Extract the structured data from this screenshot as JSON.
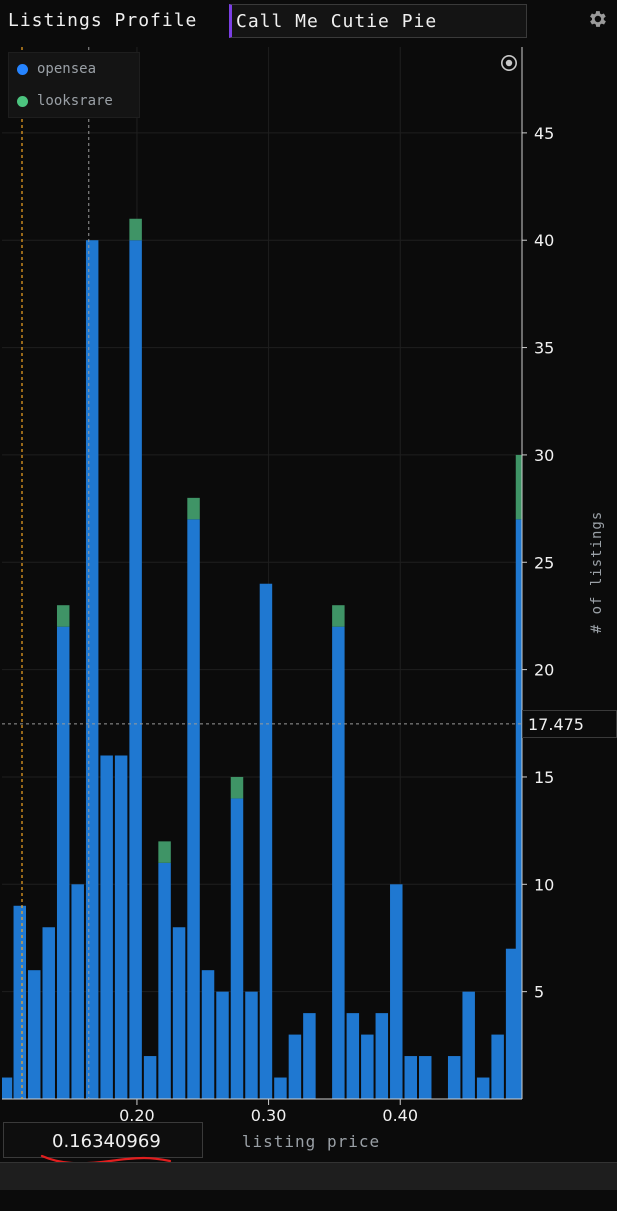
{
  "header": {
    "title": "Listings Profile",
    "collection_input": "Call Me Cutie Pie"
  },
  "legend": {
    "items": [
      {
        "label": "opensea",
        "color": "#2684ff"
      },
      {
        "label": "looksrare",
        "color": "#4cc47f"
      }
    ]
  },
  "crosshair": {
    "x_value": "0.16340969",
    "y_value": "17.475"
  },
  "colors": {
    "opensea": "#1f78d1",
    "looksrare": "#3f9466",
    "crosshair_line": "#f5a623",
    "background": "#0b0b0b"
  },
  "chart_data": {
    "type": "bar",
    "stacked": true,
    "xlabel": "listing price",
    "ylabel": "# of listings",
    "x_ticks": [
      {
        "value": 0.2,
        "label": "0.20"
      },
      {
        "value": 0.3,
        "label": "0.30"
      },
      {
        "value": 0.4,
        "label": "0.40"
      }
    ],
    "y_ticks": [
      5,
      10,
      15,
      20,
      25,
      30,
      35,
      40,
      45
    ],
    "xlim": [
      0.0975,
      0.4925
    ],
    "ylim": [
      0,
      49
    ],
    "bin_width": 0.011,
    "grid": true,
    "legend_position": "top-left",
    "x": [
      0.1005,
      0.111,
      0.122,
      0.133,
      0.144,
      0.155,
      0.166,
      0.177,
      0.188,
      0.199,
      0.21,
      0.221,
      0.232,
      0.243,
      0.254,
      0.265,
      0.276,
      0.287,
      0.298,
      0.309,
      0.32,
      0.331,
      0.342,
      0.353,
      0.364,
      0.375,
      0.386,
      0.397,
      0.408,
      0.419,
      0.43,
      0.441,
      0.452,
      0.463,
      0.474,
      0.485,
      0.4925
    ],
    "series": [
      {
        "name": "opensea",
        "values": [
          1,
          9,
          6,
          8,
          22,
          10,
          40,
          16,
          16,
          40,
          2,
          11,
          8,
          27,
          6,
          5,
          14,
          5,
          24,
          1,
          3,
          4,
          0,
          22,
          4,
          3,
          4,
          10,
          2,
          2,
          0,
          2,
          5,
          1,
          3,
          7,
          27
        ]
      },
      {
        "name": "looksrare",
        "values": [
          0,
          0,
          0,
          0,
          1,
          0,
          0,
          0,
          0,
          1,
          0,
          1,
          0,
          1,
          0,
          0,
          1,
          0,
          0,
          0,
          0,
          0,
          0,
          1,
          0,
          0,
          0,
          0,
          0,
          0,
          0,
          0,
          0,
          0,
          0,
          0,
          3
        ]
      }
    ]
  }
}
